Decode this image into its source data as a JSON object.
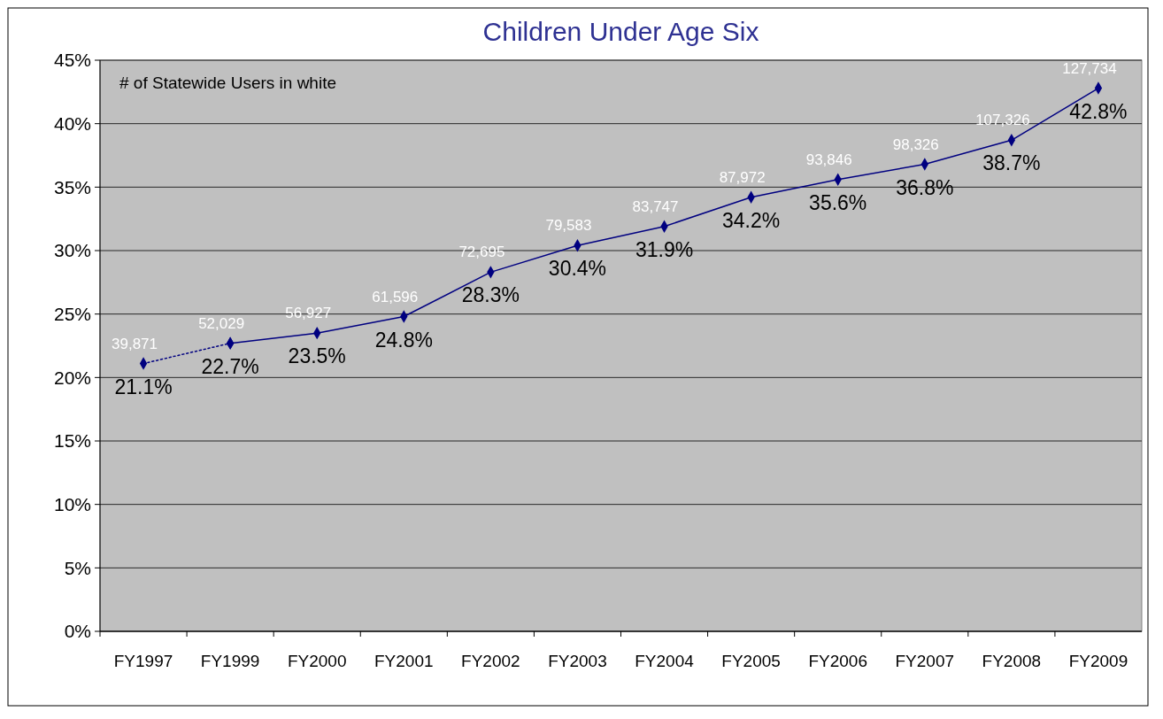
{
  "chart_data": {
    "type": "line",
    "title": "Children Under Age Six",
    "categories": [
      "FY1997",
      "FY1999",
      "FY2000",
      "FY2001",
      "FY2002",
      "FY2003",
      "FY2004",
      "FY2005",
      "FY2006",
      "FY2007",
      "FY2008",
      "FY2009"
    ],
    "series": [
      {
        "color": "#000080",
        "line_style": "dotted",
        "values": [
          21.1,
          22.7,
          null,
          null,
          null,
          null,
          null,
          null,
          null,
          null,
          null,
          null
        ],
        "value_labels": [
          "21.1%",
          null,
          null,
          null,
          null,
          null,
          null,
          null,
          null,
          null,
          null,
          null
        ]
      },
      {
        "color": "#000080",
        "line_style": "solid",
        "values": [
          null,
          22.7,
          23.5,
          24.8,
          28.3,
          30.4,
          31.9,
          34.2,
          35.6,
          36.8,
          38.7,
          42.8
        ],
        "value_labels": [
          null,
          "22.7%",
          "23.5%",
          "24.8%",
          "28.3%",
          "30.4%",
          "31.9%",
          "34.2%",
          "35.6%",
          "36.8%",
          "38.7%",
          "42.8%"
        ]
      }
    ],
    "marker": "diamond",
    "ylim": [
      0,
      45
    ],
    "yticks": [
      {
        "value": 0,
        "label": "0%"
      },
      {
        "value": 5,
        "label": "5%"
      },
      {
        "value": 10,
        "label": "10%"
      },
      {
        "value": 15,
        "label": "15%"
      },
      {
        "value": 20,
        "label": "20%"
      },
      {
        "value": 25,
        "label": "25%"
      },
      {
        "value": 30,
        "label": "30%"
      },
      {
        "value": 35,
        "label": "35%"
      },
      {
        "value": 40,
        "label": "40%"
      },
      {
        "value": 45,
        "label": "45%"
      }
    ],
    "grid": "y",
    "annotations": [
      "# of Statewide Users in white",
      {
        "text": "39,871",
        "x": "FY1997",
        "y": 21.1
      },
      {
        "text": "52,029",
        "x": "FY1999",
        "y": 22.7
      },
      {
        "text": "56,927",
        "x": "FY2000",
        "y": 23.5
      },
      {
        "text": "61,596",
        "x": "FY2001",
        "y": 24.8
      },
      {
        "text": "72,695",
        "x": "FY2002",
        "y": 28.3
      },
      {
        "text": "79,583",
        "x": "FY2003",
        "y": 30.4
      },
      {
        "text": "83,747",
        "x": "FY2004",
        "y": 31.9
      },
      {
        "text": "87,972",
        "x": "FY2005",
        "y": 34.2
      },
      {
        "text": "93,846",
        "x": "FY2006",
        "y": 35.6
      },
      {
        "text": "98,326",
        "x": "FY2007",
        "y": 36.8
      },
      {
        "text": "107,326",
        "x": "FY2008",
        "y": 38.7
      },
      {
        "text": "127,734",
        "x": "FY2009",
        "y": 42.8
      }
    ]
  }
}
